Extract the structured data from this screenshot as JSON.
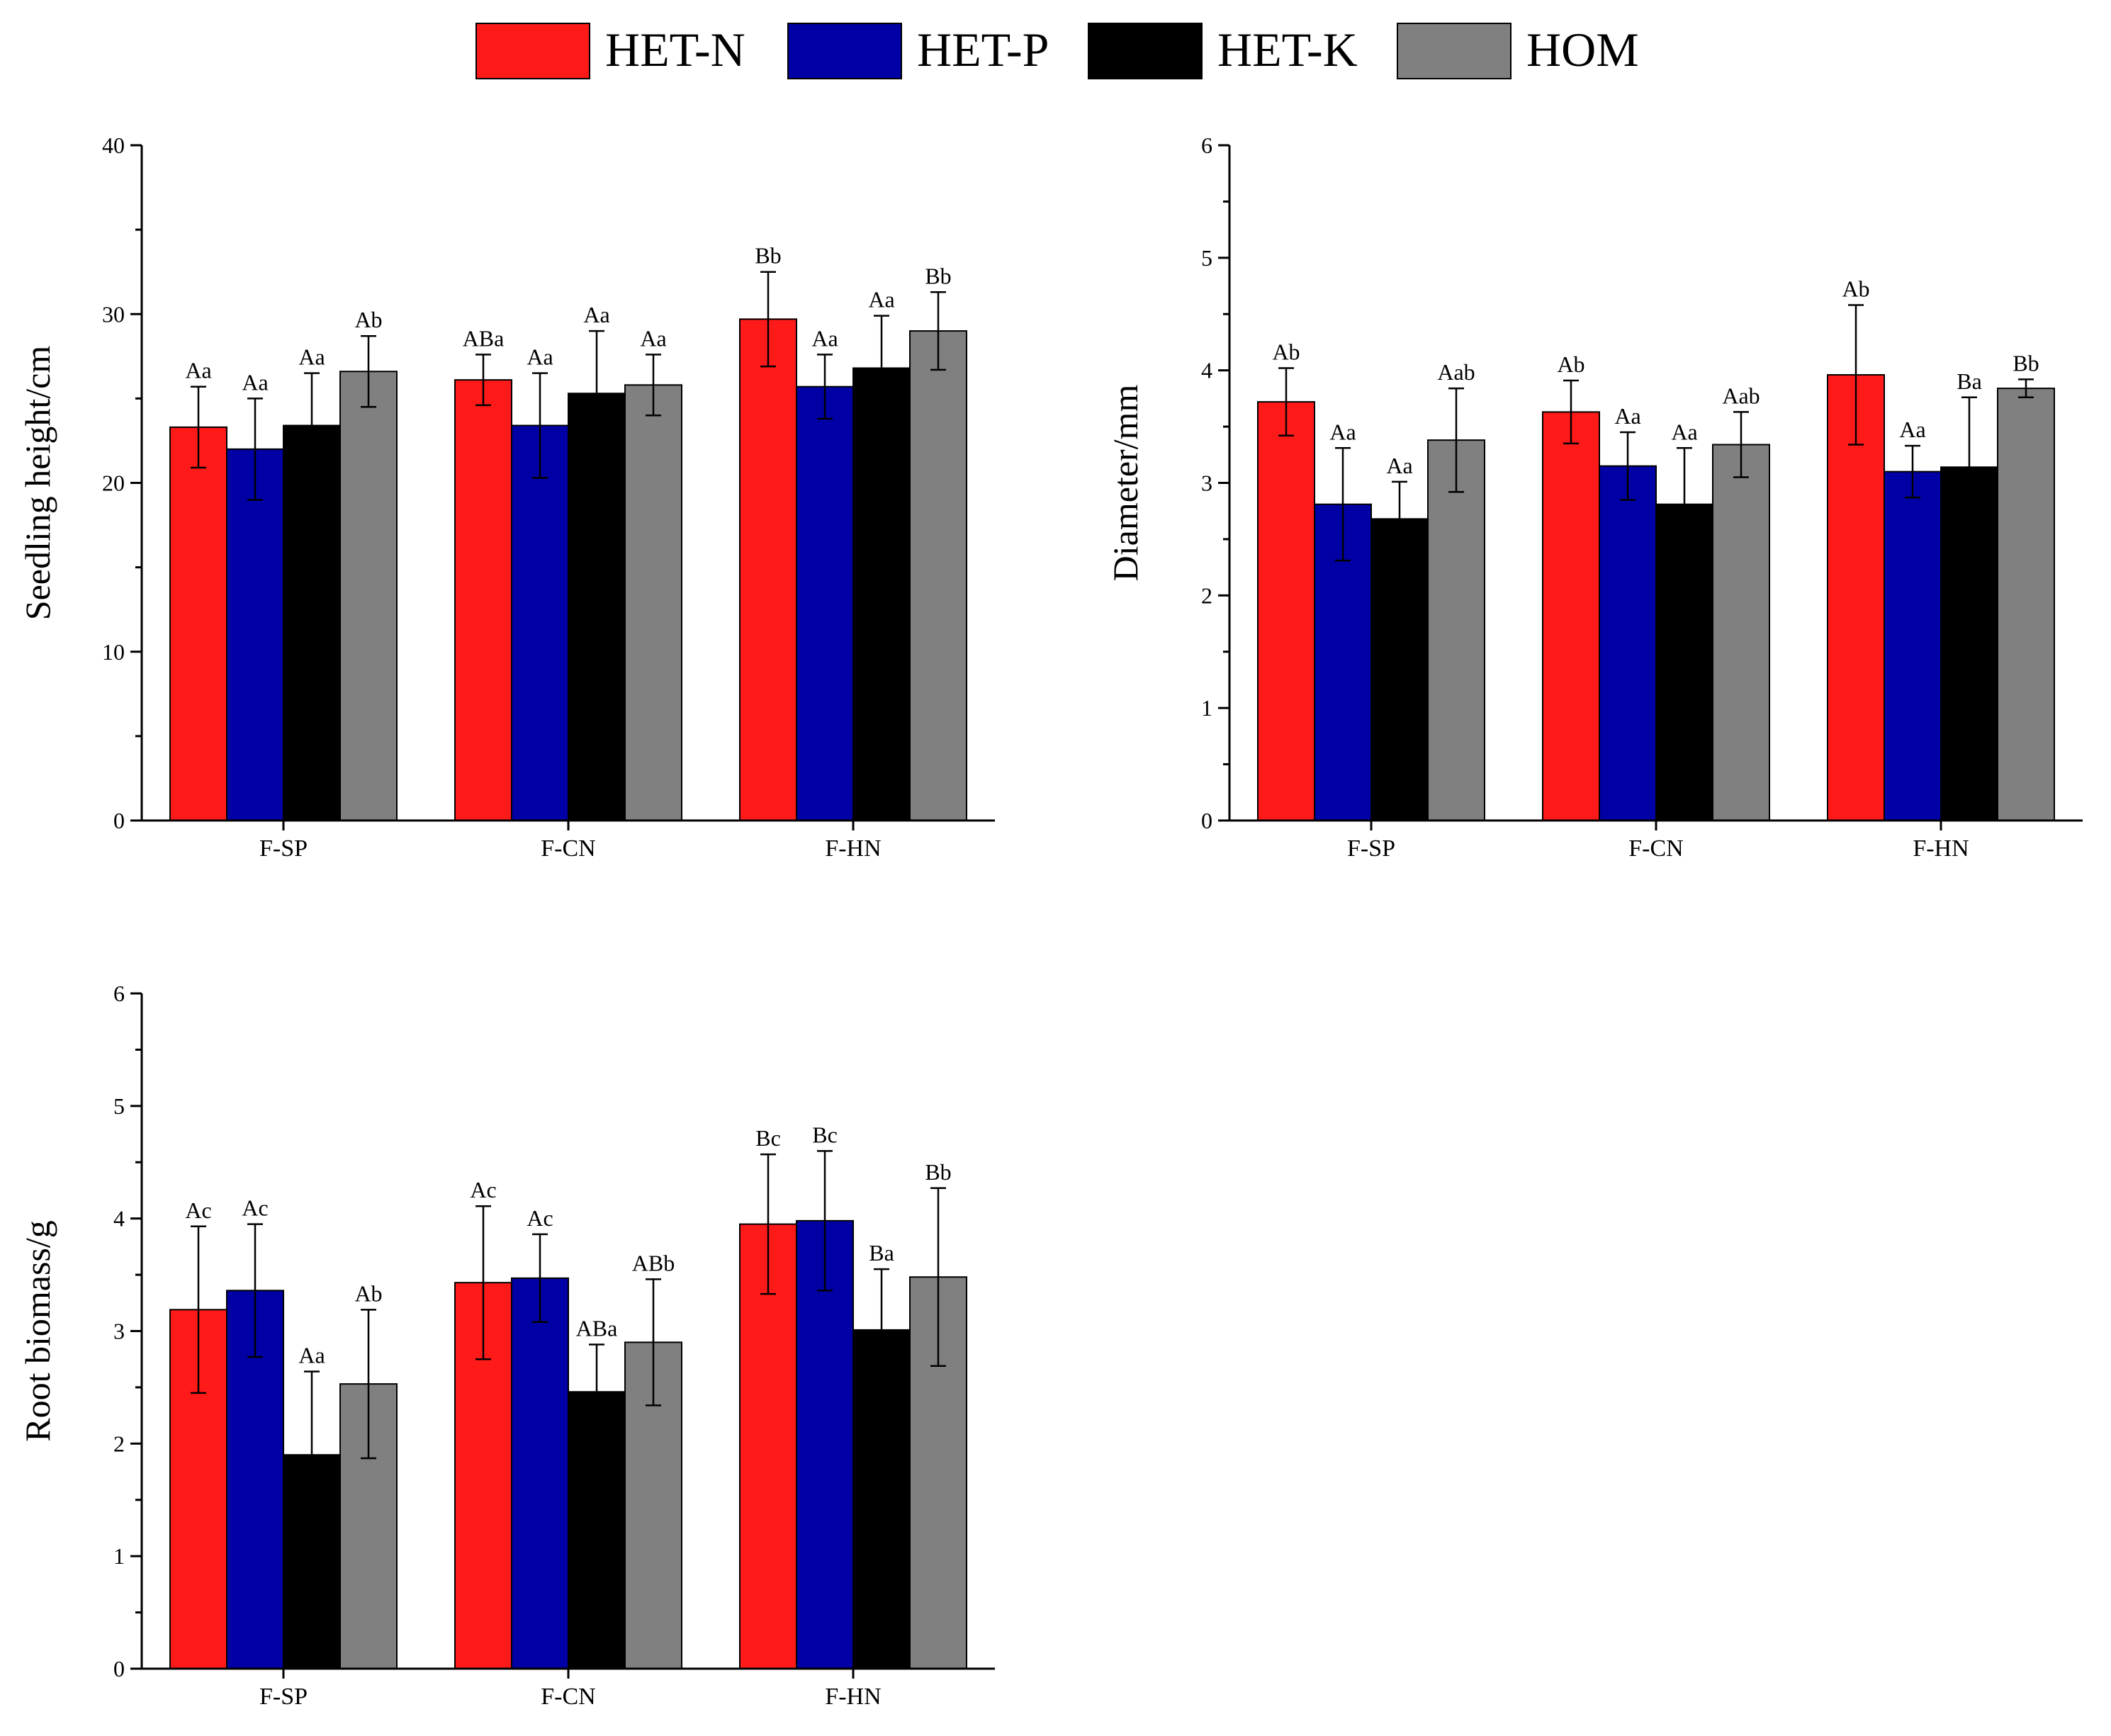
{
  "legend": [
    {
      "label": "HET-N",
      "color": "#ff1a1a"
    },
    {
      "label": "HET-P",
      "color": "#0000a5"
    },
    {
      "label": "HET-K",
      "color": "#000000"
    },
    {
      "label": "HOM",
      "color": "#808080"
    }
  ],
  "chart_data": [
    {
      "type": "bar",
      "ylabel": "Seedling height/cm",
      "ylim": [
        0,
        40
      ],
      "yticks": [
        0,
        10,
        20,
        30,
        40
      ],
      "categories": [
        "F-SP",
        "F-CN",
        "F-HN"
      ],
      "series": [
        {
          "name": "HET-N",
          "values": [
            23.3,
            26.1,
            29.7
          ],
          "errors": [
            2.4,
            1.5,
            2.8
          ],
          "labels": [
            "Aa",
            "ABa",
            "Bb"
          ]
        },
        {
          "name": "HET-P",
          "values": [
            22.0,
            23.4,
            25.7
          ],
          "errors": [
            3.0,
            3.1,
            1.9
          ],
          "labels": [
            "Aa",
            "Aa",
            "Aa"
          ]
        },
        {
          "name": "HET-K",
          "values": [
            23.4,
            25.3,
            26.8
          ],
          "errors": [
            3.1,
            3.7,
            3.1
          ],
          "labels": [
            "Aa",
            "Aa",
            "Aa"
          ]
        },
        {
          "name": "HOM",
          "values": [
            26.6,
            25.8,
            29.0
          ],
          "errors": [
            2.1,
            1.8,
            2.3
          ],
          "labels": [
            "Ab",
            "Aa",
            "Bb"
          ]
        }
      ]
    },
    {
      "type": "bar",
      "ylabel": "Diameter/mm",
      "ylim": [
        0,
        6
      ],
      "yticks": [
        0,
        1,
        2,
        3,
        4,
        5,
        6
      ],
      "categories": [
        "F-SP",
        "F-CN",
        "F-HN"
      ],
      "series": [
        {
          "name": "HET-N",
          "values": [
            3.72,
            3.63,
            3.96
          ],
          "errors": [
            0.3,
            0.28,
            0.62
          ],
          "labels": [
            "Ab",
            "Ab",
            "Ab"
          ]
        },
        {
          "name": "HET-P",
          "values": [
            2.81,
            3.15,
            3.1
          ],
          "errors": [
            0.5,
            0.3,
            0.23
          ],
          "labels": [
            "Aa",
            "Aa",
            "Aa"
          ]
        },
        {
          "name": "HET-K",
          "values": [
            2.68,
            2.81,
            3.14
          ],
          "errors": [
            0.33,
            0.5,
            0.62
          ],
          "labels": [
            "Aa",
            "Aa",
            "Ba"
          ]
        },
        {
          "name": "HOM",
          "values": [
            3.38,
            3.34,
            3.84
          ],
          "errors": [
            0.46,
            0.29,
            0.08
          ],
          "labels": [
            "Aab",
            "Aab",
            "Bb"
          ]
        }
      ]
    },
    {
      "type": "bar",
      "ylabel": "Root biomass/g",
      "ylim": [
        0,
        6
      ],
      "yticks": [
        0,
        1,
        2,
        3,
        4,
        5,
        6
      ],
      "categories": [
        "F-SP",
        "F-CN",
        "F-HN"
      ],
      "series": [
        {
          "name": "HET-N",
          "values": [
            3.19,
            3.43,
            3.95
          ],
          "errors": [
            0.74,
            0.68,
            0.62
          ],
          "labels": [
            "Ac",
            "Ac",
            "Bc"
          ]
        },
        {
          "name": "HET-P",
          "values": [
            3.36,
            3.47,
            3.98
          ],
          "errors": [
            0.59,
            0.39,
            0.62
          ],
          "labels": [
            "Ac",
            "Ac",
            "Bc"
          ]
        },
        {
          "name": "HET-K",
          "values": [
            1.9,
            2.46,
            3.01
          ],
          "errors": [
            0.74,
            0.42,
            0.54
          ],
          "labels": [
            "Aa",
            "ABa",
            "Ba"
          ]
        },
        {
          "name": "HOM",
          "values": [
            2.53,
            2.9,
            3.48
          ],
          "errors": [
            0.66,
            0.56,
            0.79
          ],
          "labels": [
            "Ab",
            "ABb",
            "Bb"
          ]
        }
      ]
    }
  ]
}
